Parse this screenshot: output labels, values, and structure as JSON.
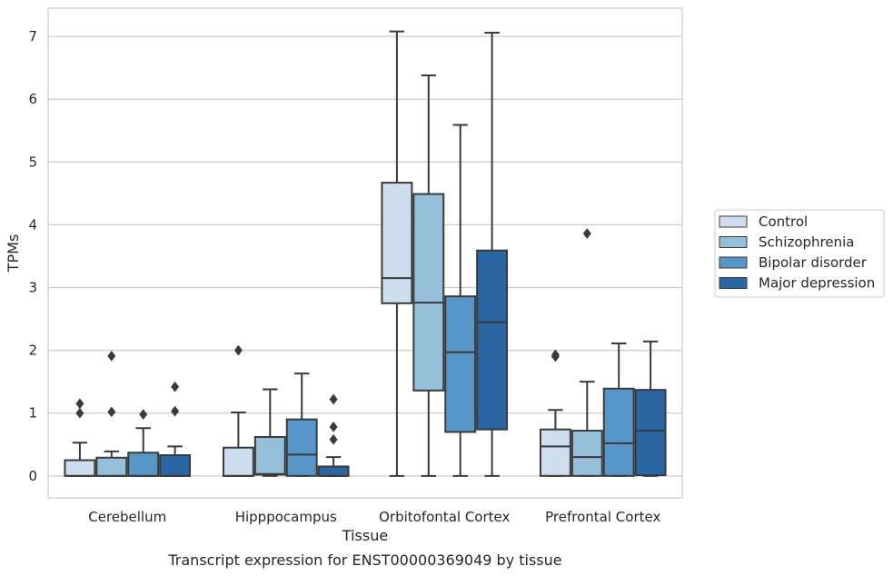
{
  "caption": "Transcript expression for ENST00000369049 by tissue",
  "chart_data": {
    "type": "box",
    "xlabel": "Tissue",
    "ylabel": "TPMs",
    "ylim": [
      -0.35,
      7.45
    ],
    "yticks": [
      0,
      1,
      2,
      3,
      4,
      5,
      6,
      7
    ],
    "grid": "horizontal",
    "legend_position": "right",
    "categories": [
      "Cerebellum",
      "Hipppocampus",
      "Orbitofontal Cortex",
      "Prefrontal Cortex"
    ],
    "series": [
      {
        "name": "Control",
        "color": "#cfdeee",
        "boxes": [
          {
            "whisker_low": 0,
            "q1": 0,
            "median": 0,
            "q3": 0.25,
            "whisker_high": 0.53,
            "outliers": [
              1.0,
              1.15
            ]
          },
          {
            "whisker_low": 0,
            "q1": 0,
            "median": 0,
            "q3": 0.45,
            "whisker_high": 1.01,
            "outliers": [
              2.0
            ]
          },
          {
            "whisker_low": 0,
            "q1": 2.75,
            "median": 3.15,
            "q3": 4.67,
            "whisker_high": 7.08,
            "outliers": []
          },
          {
            "whisker_low": 0,
            "q1": 0,
            "median": 0.47,
            "q3": 0.74,
            "whisker_high": 1.05,
            "outliers": [
              1.9,
              1.93
            ]
          }
        ]
      },
      {
        "name": "Schizophrenia",
        "color": "#96bfda",
        "boxes": [
          {
            "whisker_low": 0,
            "q1": 0,
            "median": 0,
            "q3": 0.29,
            "whisker_high": 0.39,
            "outliers": [
              1.02,
              1.91
            ]
          },
          {
            "whisker_low": 0,
            "q1": 0.02,
            "median": 0.03,
            "q3": 0.62,
            "whisker_high": 1.38,
            "outliers": []
          },
          {
            "whisker_low": 0,
            "q1": 1.36,
            "median": 2.76,
            "q3": 4.49,
            "whisker_high": 6.38,
            "outliers": []
          },
          {
            "whisker_low": 0,
            "q1": 0,
            "median": 0.3,
            "q3": 0.72,
            "whisker_high": 1.5,
            "outliers": [
              3.86
            ]
          }
        ]
      },
      {
        "name": "Bipolar disorder",
        "color": "#5696c8",
        "boxes": [
          {
            "whisker_low": 0,
            "q1": 0,
            "median": 0,
            "q3": 0.37,
            "whisker_high": 0.76,
            "outliers": [
              0.98
            ]
          },
          {
            "whisker_low": 0,
            "q1": 0,
            "median": 0.34,
            "q3": 0.9,
            "whisker_high": 1.63,
            "outliers": []
          },
          {
            "whisker_low": 0,
            "q1": 0.7,
            "median": 1.97,
            "q3": 2.86,
            "whisker_high": 5.59,
            "outliers": []
          },
          {
            "whisker_low": 0,
            "q1": 0,
            "median": 0.52,
            "q3": 1.39,
            "whisker_high": 2.11,
            "outliers": []
          }
        ]
      },
      {
        "name": "Major depression",
        "color": "#2a66a3",
        "boxes": [
          {
            "whisker_low": 0,
            "q1": 0,
            "median": 0,
            "q3": 0.33,
            "whisker_high": 0.47,
            "outliers": [
              1.03,
              1.42
            ]
          },
          {
            "whisker_low": 0,
            "q1": 0,
            "median": 0,
            "q3": 0.15,
            "whisker_high": 0.3,
            "outliers": [
              0.58,
              0.78,
              1.22
            ]
          },
          {
            "whisker_low": 0,
            "q1": 0.74,
            "median": 2.45,
            "q3": 3.59,
            "whisker_high": 7.06,
            "outliers": []
          },
          {
            "whisker_low": 0,
            "q1": 0.01,
            "median": 0.72,
            "q3": 1.37,
            "whisker_high": 2.14,
            "outliers": []
          }
        ]
      }
    ]
  }
}
